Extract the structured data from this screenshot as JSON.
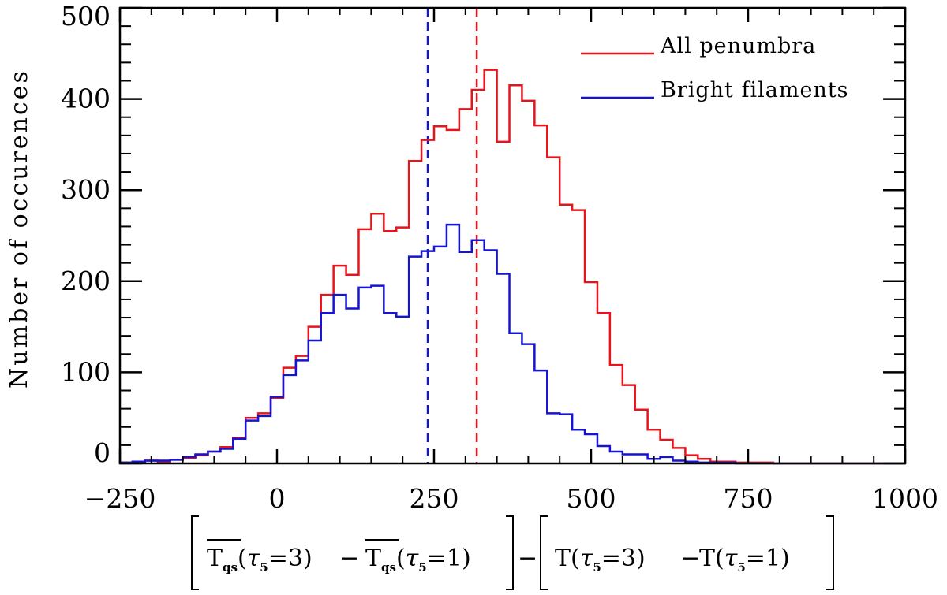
{
  "chart_data": {
    "type": "histogram",
    "xlim": [
      -250,
      1000
    ],
    "ylim": [
      0,
      500
    ],
    "xticks": [
      -250,
      0,
      250,
      500,
      750,
      1000
    ],
    "yticks": [
      0,
      100,
      200,
      300,
      400,
      500
    ],
    "xtick_labels": [
      "−250",
      "0",
      "250",
      "500",
      "750",
      "1000"
    ],
    "ytick_labels": [
      "0",
      "100",
      "200",
      "300",
      "400",
      "500"
    ],
    "ylabel": "Number of occurences",
    "xlabel": {
      "T": "T",
      "qs": "qs",
      "tau": "τ",
      "five": "5",
      "eq3": "=3)",
      "eq1": "=1)",
      "open_paren": "(",
      "minus": "−"
    },
    "bin_edges": [
      -250,
      -230,
      -210,
      -190,
      -170,
      -150,
      -130,
      -110,
      -90,
      -70,
      -50,
      -30,
      -10,
      10,
      30,
      50,
      70,
      90,
      110,
      130,
      150,
      170,
      190,
      210,
      230,
      250,
      270,
      290,
      310,
      330,
      350,
      370,
      390,
      410,
      430,
      450,
      470,
      490,
      510,
      530,
      550,
      570,
      590,
      610,
      630,
      650,
      670,
      690,
      710,
      730,
      750,
      770,
      790,
      810,
      830,
      850,
      870,
      890,
      910,
      930,
      950,
      970,
      990,
      1000
    ],
    "series": [
      {
        "name": "All penumbra",
        "color": "#e8141b",
        "values": [
          1,
          2,
          3,
          2,
          4,
          6,
          9,
          13,
          18,
          28,
          50,
          55,
          72,
          105,
          118,
          150,
          185,
          217,
          207,
          257,
          274,
          255,
          259,
          332,
          355,
          370,
          366,
          389,
          410,
          432,
          353,
          415,
          398,
          371,
          336,
          284,
          278,
          199,
          165,
          108,
          86,
          59,
          37,
          26,
          17,
          9,
          5,
          2,
          2,
          1,
          1,
          1,
          0,
          0,
          0,
          0,
          0,
          0,
          0,
          0,
          0,
          0,
          0
        ]
      },
      {
        "name": "Bright filaments",
        "color": "#1414d2",
        "values": [
          1,
          2,
          3,
          3,
          4,
          7,
          10,
          13,
          16,
          27,
          47,
          52,
          73,
          97,
          113,
          135,
          165,
          185,
          170,
          193,
          195,
          165,
          161,
          227,
          233,
          238,
          262,
          232,
          245,
          234,
          208,
          143,
          131,
          102,
          55,
          54,
          37,
          32,
          19,
          13,
          10,
          10,
          5,
          7,
          3,
          2,
          1,
          1,
          1,
          0,
          0,
          0,
          0,
          0,
          0,
          0,
          0,
          0,
          0,
          0,
          0,
          0,
          0
        ]
      }
    ],
    "vlines": [
      {
        "x": 240,
        "color": "#1414d2",
        "style": "dashed"
      },
      {
        "x": 318,
        "color": "#e8141b",
        "style": "dashed"
      }
    ],
    "legend_position": "top-right"
  }
}
